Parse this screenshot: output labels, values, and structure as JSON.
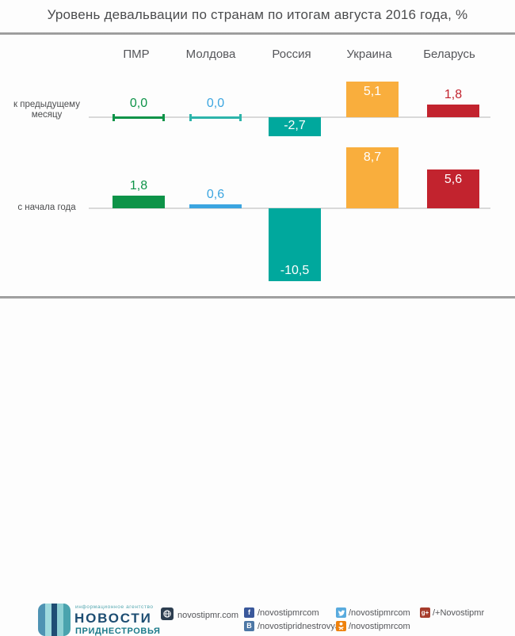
{
  "title": "Уровень девальвации по странам по итогам августа 2016 года, %",
  "chart_data": {
    "type": "bar",
    "categories": [
      "ПМР",
      "Молдова",
      "Россия",
      "Украина",
      "Беларусь"
    ],
    "series": [
      {
        "name": "к предыдущему месяцу",
        "values": [
          0.0,
          0.0,
          -2.7,
          5.1,
          1.8
        ],
        "labels": [
          "0,0",
          "0,0",
          "-2,7",
          "5,1",
          "1,8"
        ]
      },
      {
        "name": "с начала года",
        "values": [
          1.8,
          0.6,
          -10.5,
          8.7,
          5.6
        ],
        "labels": [
          "1,8",
          "0,6",
          "-10,5",
          "8,7",
          "5,6"
        ]
      }
    ],
    "bar_colors": [
      "#0d9348",
      "#3ba5e0",
      "#00a89d",
      "#f9ae3d",
      "#c2232e"
    ],
    "zero_line_colors": [
      "#0d9348",
      "#2db4aa",
      "#00a89d",
      "#f9ae3d",
      "#c2232e"
    ],
    "baseline_color": "#d9d9d9",
    "unit": "%",
    "legend_position": "none",
    "grid": false
  },
  "footer": {
    "agency_small": "информационное агентство",
    "brand_line1": "НОВОСТИ",
    "brand_line2": "ПРИДНЕСТРОВЬЯ",
    "website": {
      "label": "novostipmr.com"
    },
    "facebook": {
      "label": "/novostipmrcom",
      "glyph": "f",
      "color": "#3a589b"
    },
    "twitter": {
      "label": "/novostipmrcom",
      "color": "#59abde"
    },
    "googleplus": {
      "label": "/+Novostipmr",
      "glyph": "g+",
      "color": "#a63c2c"
    },
    "vk": {
      "label": "/novostipridnestrovya",
      "glyph": "В",
      "color": "#4d77a5"
    },
    "odnoklassniki": {
      "label": "/novostipmrcom",
      "color": "#ef820d"
    }
  }
}
